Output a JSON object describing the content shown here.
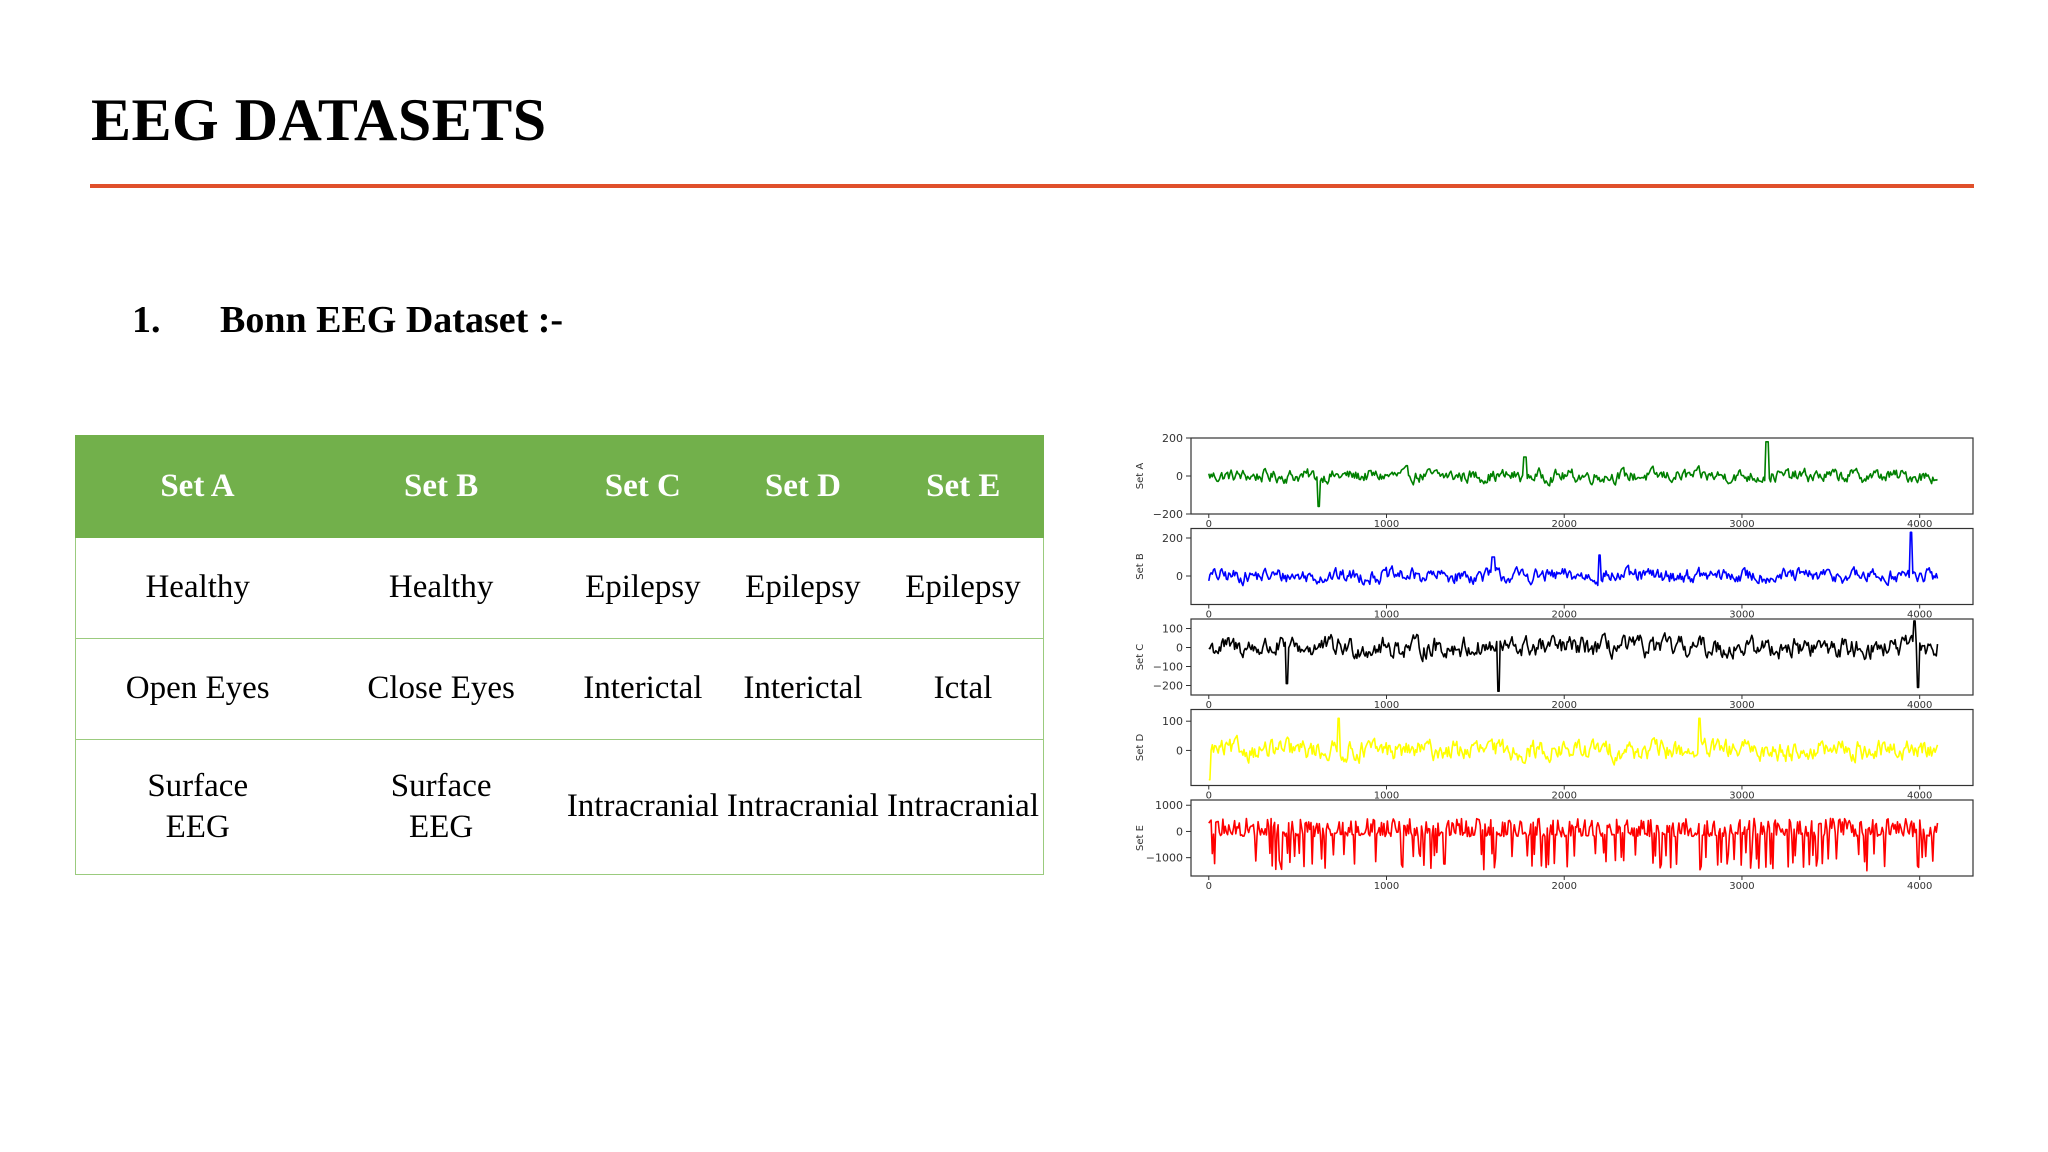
{
  "slide": {
    "title": "EEG DATASETS",
    "section_number": "1.",
    "section_title": "Bonn EEG Dataset :-"
  },
  "table": {
    "headers": [
      "Set A",
      "Set B",
      "Set C",
      "Set D",
      "Set E"
    ],
    "rows": [
      [
        "Healthy",
        "Healthy",
        "Epilepsy",
        "Epilepsy",
        "Epilepsy"
      ],
      [
        "Open Eyes",
        "Close Eyes",
        "Interictal",
        "Interictal",
        "Ictal"
      ],
      [
        "Surface EEG",
        "Surface EEG",
        "Intracranial",
        "Intracranial",
        "Intracranial"
      ]
    ]
  },
  "colors": {
    "accent_rule": "#e0502b",
    "table_header": "#72b04b"
  },
  "chart_data": {
    "type": "line",
    "x_ticks": [
      0,
      1000,
      2000,
      3000,
      4000
    ],
    "xlim": [
      -100,
      4300
    ],
    "panels": [
      {
        "ylabel": "Set A",
        "color": "#008000",
        "ylim": [
          -200,
          200
        ],
        "y_ticks": [
          "200",
          "0",
          "−200"
        ],
        "y_tick_values": [
          200,
          0,
          -200
        ],
        "amplitude": 45,
        "spikes": [
          [
            620,
            -160
          ],
          [
            3140,
            180
          ],
          [
            1780,
            100
          ]
        ]
      },
      {
        "ylabel": "Set B",
        "color": "#0000ff",
        "ylim": [
          -150,
          250
        ],
        "y_ticks": [
          "200",
          "0"
        ],
        "y_tick_values": [
          200,
          0
        ],
        "amplitude": 50,
        "spikes": [
          [
            3950,
            230
          ],
          [
            2200,
            110
          ],
          [
            1600,
            100
          ]
        ]
      },
      {
        "ylabel": "Set C",
        "color": "#000000",
        "ylim": [
          -250,
          150
        ],
        "y_ticks": [
          "100",
          "0",
          "−100",
          "−200"
        ],
        "y_tick_values": [
          100,
          0,
          -100,
          -200
        ],
        "amplitude": 70,
        "spikes": [
          [
            1630,
            -230
          ],
          [
            440,
            -190
          ],
          [
            3970,
            140
          ],
          [
            3990,
            -210
          ]
        ]
      },
      {
        "ylabel": "Set D",
        "color": "#ffff00",
        "ylim": [
          -120,
          140
        ],
        "y_ticks": [
          "100",
          "0"
        ],
        "y_tick_values": [
          100,
          0
        ],
        "amplitude": 45,
        "spikes": [
          [
            730,
            110
          ],
          [
            2760,
            110
          ],
          [
            0,
            -100
          ]
        ]
      },
      {
        "ylabel": "Set E",
        "color": "#ff0000",
        "ylim": [
          -1700,
          1200
        ],
        "y_ticks": [
          "1000",
          "0",
          "−1000"
        ],
        "y_tick_values": [
          1000,
          0,
          -1000
        ],
        "amplitude": 500,
        "spikes": []
      }
    ]
  }
}
